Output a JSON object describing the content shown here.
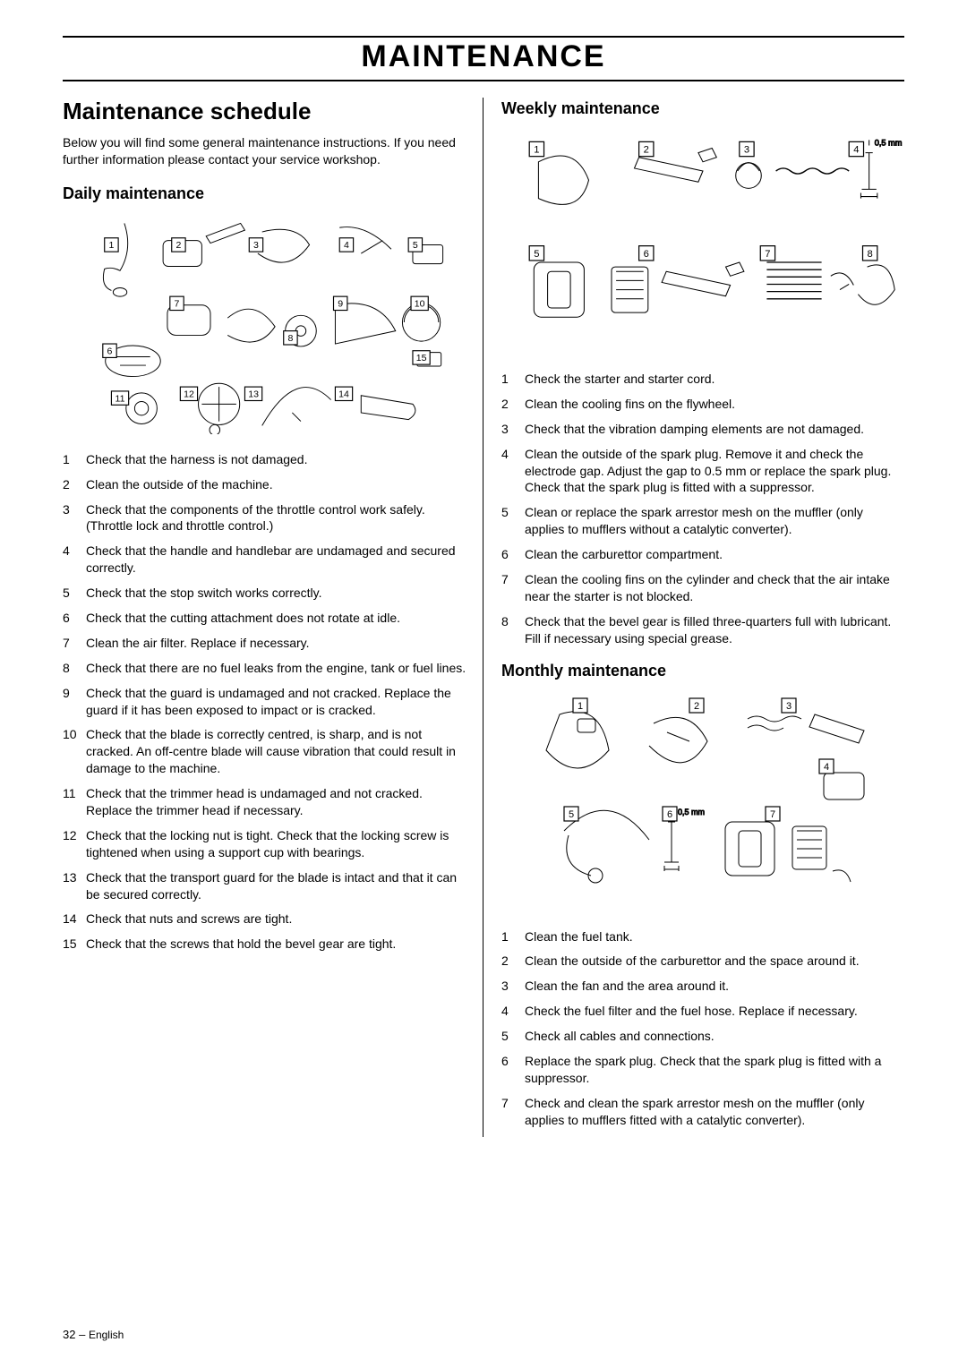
{
  "page": {
    "title": "MAINTENANCE",
    "footer_page": "32",
    "footer_sep": " – ",
    "footer_lang": "English"
  },
  "left": {
    "heading": "Maintenance schedule",
    "intro": "Below you will find some general maintenance instructions. If you need further information please contact your service workshop.",
    "daily_heading": "Daily maintenance",
    "daily_items": [
      "Check that the harness is not damaged.",
      "Clean the outside of the machine.",
      "Check that the components of the throttle control work safely. (Throttle lock and throttle control.)",
      "Check that the handle and handlebar are undamaged and secured correctly.",
      "Check that the stop switch works correctly.",
      "Check that the cutting attachment does not rotate at idle.",
      "Clean the air filter. Replace if necessary.",
      "Check that there are no fuel leaks from the engine, tank or fuel lines.",
      "Check that the guard is undamaged and not cracked. Replace the guard if it has been exposed to impact or is cracked.",
      "Check that the blade is correctly centred, is sharp, and is not cracked. An off-centre blade will cause vibration that could result in damage to the machine.",
      "Check that the trimmer head is undamaged and not cracked. Replace the trimmer head if necessary.",
      "Check that the locking nut is tight. Check that the locking screw is tightened when using a support cup with bearings.",
      "Check that the transport guard for the blade is intact and that it can be secured correctly.",
      "Check that nuts and screws are tight.",
      "Check that the screws that hold the bevel gear are tight."
    ]
  },
  "right": {
    "weekly_heading": "Weekly maintenance",
    "weekly_items": [
      "Check the starter and starter cord.",
      "Clean the cooling fins on the flywheel.",
      "Check that the vibration damping elements are not damaged.",
      "Clean the outside of the spark plug. Remove it and check the electrode gap. Adjust the gap to 0.5 mm or replace the spark plug. Check that the spark plug is fitted with a suppressor.",
      "Clean or replace the spark arrestor mesh on the muffler (only applies to mufflers without a catalytic converter).",
      "Clean the carburettor compartment.",
      "Clean the cooling fins on the cylinder and check that the air intake near the starter is not blocked.",
      "Check that the bevel gear is filled three-quarters full with lubricant. Fill if necessary using special grease."
    ],
    "monthly_heading": "Monthly maintenance",
    "monthly_items": [
      "Clean the fuel tank.",
      "Clean the outside of the carburettor and the space around it.",
      "Clean the fan and the area around it.",
      "Check the fuel filter and the fuel hose. Replace if necessary.",
      "Check all cables and connections.",
      "Replace the spark plug. Check that the spark plug is fitted with a suppressor.",
      "Check and clean the spark arrestor mesh on the muffler (only applies to mufflers fitted with a catalytic converter)."
    ]
  },
  "diagrams": {
    "daily": {
      "callouts": [
        "1",
        "2",
        "3",
        "4",
        "5",
        "6",
        "7",
        "8",
        "9",
        "10",
        "11",
        "12",
        "13",
        "14",
        "15"
      ]
    },
    "weekly": {
      "callouts": [
        "1",
        "2",
        "3",
        "4",
        "5",
        "6",
        "7",
        "8"
      ],
      "gap_label": "0,5 mm"
    },
    "monthly": {
      "callouts": [
        "1",
        "2",
        "3",
        "4",
        "5",
        "6",
        "7"
      ],
      "gap_label": "0,5 mm"
    }
  }
}
